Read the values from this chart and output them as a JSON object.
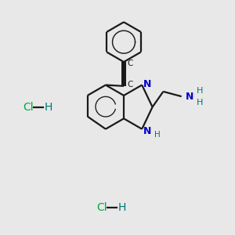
{
  "bg_color": "#e8e8e8",
  "bond_color": "#1a1a1a",
  "n_color": "#0000cc",
  "cl_color": "#00aa44",
  "h_color": "#007777",
  "lw": 1.6,
  "figsize": [
    3.0,
    3.0
  ],
  "dpi": 100,
  "xlim": [
    -5.5,
    5.5
  ],
  "ylim": [
    -5.5,
    5.5
  ]
}
